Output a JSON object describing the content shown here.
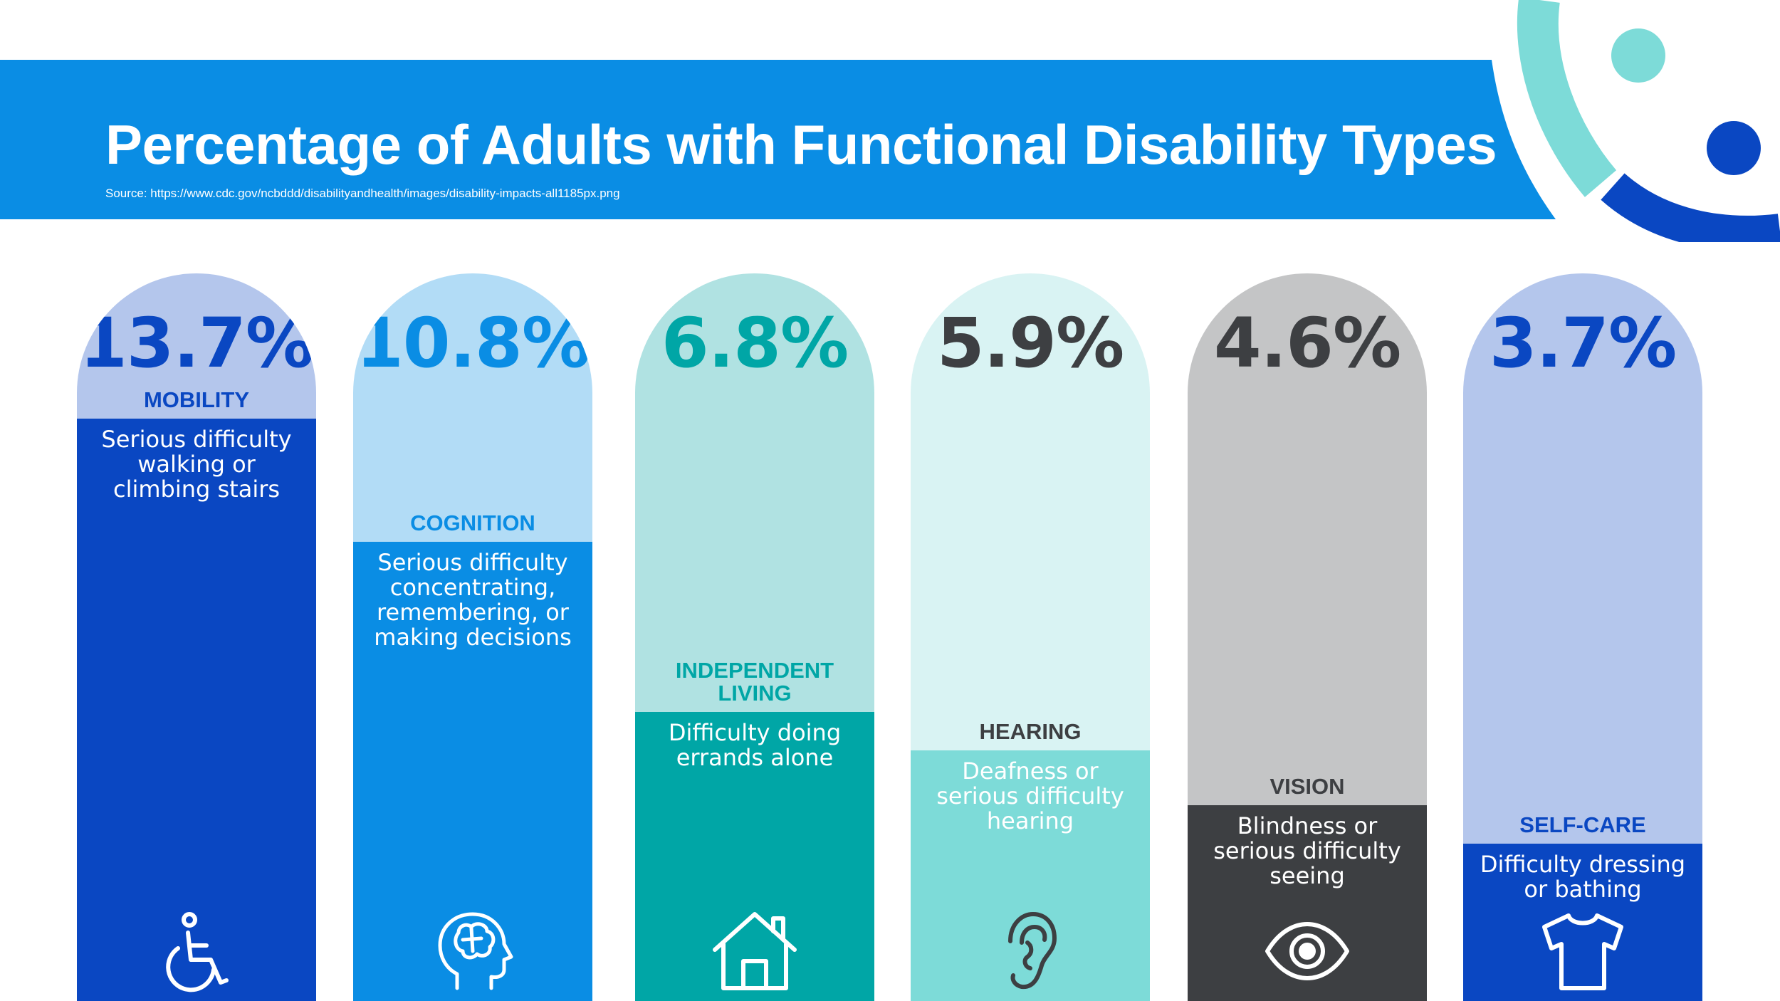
{
  "title": "Percentage of Adults with Functional Disability Types",
  "source": "Source: https://www.cdc.gov/ncbddd/disabilityandhealth/images/disability-impacts-all1185px.png",
  "chart_data": {
    "type": "bar",
    "title": "Percentage of Adults with Functional Disability Types",
    "categories": [
      "MOBILITY",
      "COGNITION",
      "INDEPENDENT LIVING",
      "HEARING",
      "VISION",
      "SELF-CARE"
    ],
    "values": [
      13.7,
      10.8,
      6.8,
      5.9,
      4.6,
      3.7
    ],
    "value_labels": [
      "13.7%",
      "10.8%",
      "6.8%",
      "5.9%",
      "4.6%",
      "3.7%"
    ],
    "descriptions": [
      "Serious difficulty walking or climbing stairs",
      "Serious difficulty concentrating, remembering, or making decisions",
      "Difficulty doing errands alone",
      "Deafness or serious difficulty hearing",
      "Blindness or serious difficulty seeing",
      "Difficulty dressing or bathing"
    ],
    "icons": [
      "wheelchair-icon",
      "brain-icon",
      "house-icon",
      "ear-icon",
      "eye-icon",
      "shirt-icon"
    ],
    "colors": {
      "fill": [
        "#0a47c2",
        "#0a8de4",
        "#00a6a6",
        "#7ddbd8",
        "#3d3f42",
        "#0a47c2"
      ],
      "track": [
        "#b4c6ec",
        "#b2dcf6",
        "#b0e2e2",
        "#d9f3f3",
        "#c4c5c6",
        "#b4c6ec"
      ],
      "label": [
        "#0a47c2",
        "#0a8de4",
        "#00a6a6",
        "#3d3f42",
        "#3d3f42",
        "#0a47c2"
      ]
    },
    "ylim": [
      0,
      13.7
    ]
  }
}
